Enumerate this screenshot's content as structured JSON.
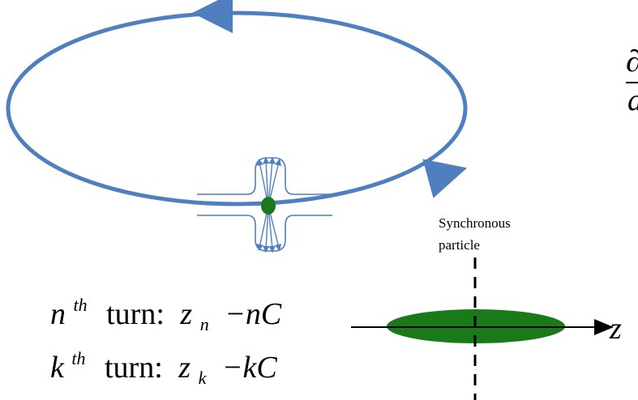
{
  "ring": {
    "color": "#4F7FBF"
  },
  "bunch": {
    "color": "#1A7A1A"
  },
  "sync_label": {
    "line1": "Synchronous",
    "line2": "particle"
  },
  "turn_n": {
    "index": "n",
    "sup": "th",
    "word": "turn:",
    "var": "z",
    "sub": "n",
    "rest": "−nC"
  },
  "turn_k": {
    "index": "k",
    "sup": "th",
    "word": "turn:",
    "var": "z",
    "sub": "k",
    "rest": "−kC"
  },
  "axis_label": "z",
  "clipped_glyphs": {
    "top": "∂",
    "bottom": "d"
  }
}
